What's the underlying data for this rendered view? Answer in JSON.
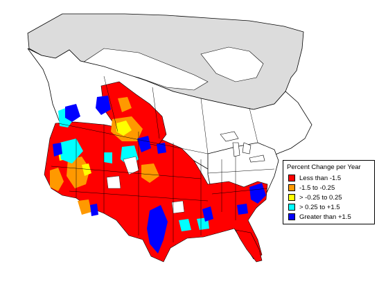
{
  "legend": {
    "title": "Percent Change per Year",
    "items": [
      {
        "label": "Less than -1.5",
        "color": "#ff0000"
      },
      {
        "label": "-1.5 to -0.25",
        "color": "#ff9900"
      },
      {
        "label": "> -0.25 to 0.25",
        "color": "#ffff00"
      },
      {
        "label": "> 0.25 to +1.5",
        "color": "#00ffff"
      },
      {
        "label": "Greater than +1.5",
        "color": "#0000ff"
      }
    ]
  },
  "colors": {
    "no_data_region": "#dcdcdc",
    "boundary": "#000000",
    "background": "#ffffff"
  }
}
